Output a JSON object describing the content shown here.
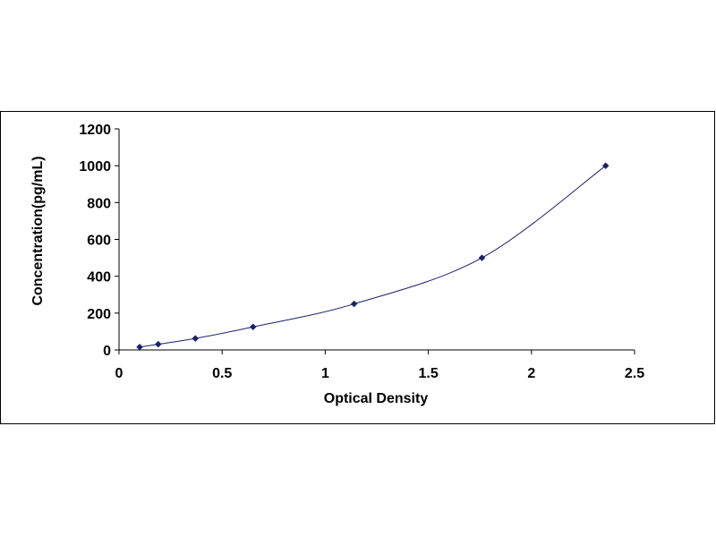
{
  "chart_data": {
    "type": "scatter",
    "title": "",
    "xlabel": "Optical Density",
    "ylabel": "Concentration(pg/mL)",
    "xlim": [
      0,
      2.5
    ],
    "ylim": [
      0,
      1200
    ],
    "x_ticks": [
      "0",
      "0.5",
      "1",
      "1.5",
      "2",
      "2.5"
    ],
    "y_ticks": [
      "0",
      "200",
      "400",
      "600",
      "800",
      "1000",
      "1200"
    ],
    "grid": false,
    "legend": "none",
    "series": [
      {
        "x": [
          0.1,
          0.19,
          0.37,
          0.65,
          1.14,
          1.76,
          2.36
        ],
        "y": [
          15.6,
          31.2,
          62.5,
          125,
          250,
          500,
          1000
        ],
        "marker": "diamond",
        "fitted_curve": true
      }
    ],
    "colors": {
      "marker": "#1f1f6e",
      "curve": "#1f1f6e",
      "axis": "#000000"
    }
  }
}
